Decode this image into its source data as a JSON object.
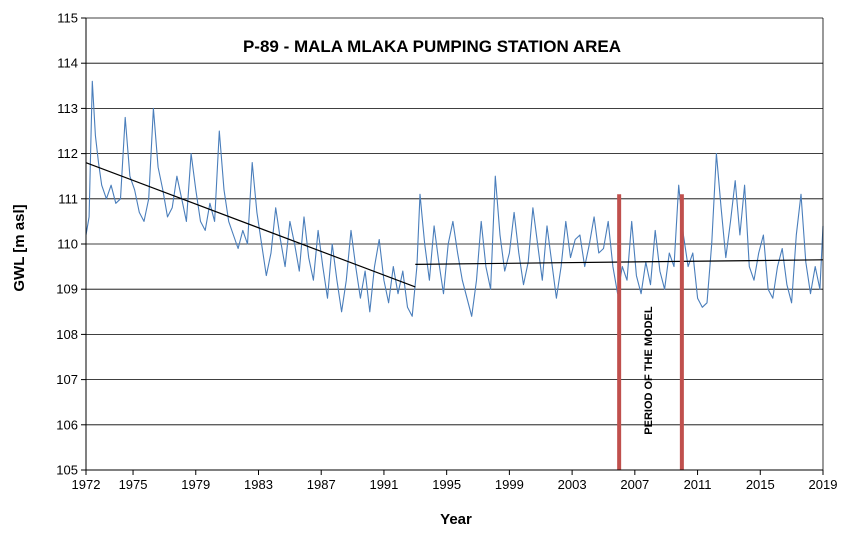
{
  "chart_data": {
    "type": "line",
    "title": "P-89 - MALA MLAKA PUMPING STATION AREA",
    "xlabel": "Year",
    "ylabel": "GWL [m asl]",
    "xlim": [
      1972,
      2019
    ],
    "ylim": [
      105,
      115
    ],
    "x_ticks": [
      1972,
      1975,
      1979,
      1983,
      1987,
      1991,
      1995,
      1999,
      2003,
      2007,
      2011,
      2015,
      2019
    ],
    "y_ticks": [
      105,
      106,
      107,
      108,
      109,
      110,
      111,
      112,
      113,
      114,
      115
    ],
    "grid": "horizontal",
    "series": [
      {
        "name": "GWL",
        "color": "#4a7ebb",
        "points": [
          [
            1972.0,
            110.2
          ],
          [
            1972.2,
            110.6
          ],
          [
            1972.4,
            113.6
          ],
          [
            1972.6,
            112.4
          ],
          [
            1972.8,
            111.8
          ],
          [
            1973.0,
            111.3
          ],
          [
            1973.3,
            111.0
          ],
          [
            1973.6,
            111.3
          ],
          [
            1973.9,
            110.9
          ],
          [
            1974.2,
            111.0
          ],
          [
            1974.5,
            112.8
          ],
          [
            1974.8,
            111.5
          ],
          [
            1975.1,
            111.2
          ],
          [
            1975.4,
            110.7
          ],
          [
            1975.7,
            110.5
          ],
          [
            1976.0,
            111.0
          ],
          [
            1976.3,
            113.0
          ],
          [
            1976.6,
            111.7
          ],
          [
            1976.9,
            111.2
          ],
          [
            1977.2,
            110.6
          ],
          [
            1977.5,
            110.8
          ],
          [
            1977.8,
            111.5
          ],
          [
            1978.1,
            111.0
          ],
          [
            1978.4,
            110.5
          ],
          [
            1978.7,
            112.0
          ],
          [
            1979.0,
            111.2
          ],
          [
            1979.3,
            110.5
          ],
          [
            1979.6,
            110.3
          ],
          [
            1979.9,
            110.9
          ],
          [
            1980.2,
            110.5
          ],
          [
            1980.5,
            112.5
          ],
          [
            1980.8,
            111.2
          ],
          [
            1981.1,
            110.5
          ],
          [
            1981.4,
            110.2
          ],
          [
            1981.7,
            109.9
          ],
          [
            1982.0,
            110.3
          ],
          [
            1982.3,
            110.0
          ],
          [
            1982.6,
            111.8
          ],
          [
            1982.9,
            110.7
          ],
          [
            1983.2,
            110.0
          ],
          [
            1983.5,
            109.3
          ],
          [
            1983.8,
            109.8
          ],
          [
            1984.1,
            110.8
          ],
          [
            1984.4,
            110.1
          ],
          [
            1984.7,
            109.5
          ],
          [
            1985.0,
            110.5
          ],
          [
            1985.3,
            110.0
          ],
          [
            1985.6,
            109.4
          ],
          [
            1985.9,
            110.6
          ],
          [
            1986.2,
            109.7
          ],
          [
            1986.5,
            109.2
          ],
          [
            1986.8,
            110.3
          ],
          [
            1987.1,
            109.5
          ],
          [
            1987.4,
            108.8
          ],
          [
            1987.7,
            110.0
          ],
          [
            1988.0,
            109.2
          ],
          [
            1988.3,
            108.5
          ],
          [
            1988.6,
            109.2
          ],
          [
            1988.9,
            110.3
          ],
          [
            1989.2,
            109.5
          ],
          [
            1989.5,
            108.8
          ],
          [
            1989.8,
            109.4
          ],
          [
            1990.1,
            108.5
          ],
          [
            1990.4,
            109.5
          ],
          [
            1990.7,
            110.1
          ],
          [
            1991.0,
            109.2
          ],
          [
            1991.3,
            108.7
          ],
          [
            1991.6,
            109.5
          ],
          [
            1991.9,
            108.9
          ],
          [
            1992.2,
            109.4
          ],
          [
            1992.5,
            108.6
          ],
          [
            1992.8,
            108.4
          ],
          [
            1993.1,
            109.5
          ],
          [
            1993.3,
            111.1
          ],
          [
            1993.6,
            110.0
          ],
          [
            1993.9,
            109.2
          ],
          [
            1994.2,
            110.4
          ],
          [
            1994.5,
            109.6
          ],
          [
            1994.8,
            108.9
          ],
          [
            1995.1,
            110.0
          ],
          [
            1995.4,
            110.5
          ],
          [
            1995.7,
            109.8
          ],
          [
            1996.0,
            109.2
          ],
          [
            1996.3,
            108.8
          ],
          [
            1996.6,
            108.4
          ],
          [
            1996.9,
            109.2
          ],
          [
            1997.2,
            110.5
          ],
          [
            1997.5,
            109.5
          ],
          [
            1997.8,
            109.0
          ],
          [
            1998.1,
            111.5
          ],
          [
            1998.4,
            110.2
          ],
          [
            1998.7,
            109.4
          ],
          [
            1999.0,
            109.8
          ],
          [
            1999.3,
            110.7
          ],
          [
            1999.6,
            109.8
          ],
          [
            1999.9,
            109.1
          ],
          [
            2000.2,
            109.6
          ],
          [
            2000.5,
            110.8
          ],
          [
            2000.8,
            110.0
          ],
          [
            2001.1,
            109.2
          ],
          [
            2001.4,
            110.4
          ],
          [
            2001.7,
            109.6
          ],
          [
            2002.0,
            108.8
          ],
          [
            2002.3,
            109.5
          ],
          [
            2002.6,
            110.5
          ],
          [
            2002.9,
            109.7
          ],
          [
            2003.2,
            110.1
          ],
          [
            2003.5,
            110.2
          ],
          [
            2003.8,
            109.5
          ],
          [
            2004.1,
            110.0
          ],
          [
            2004.4,
            110.6
          ],
          [
            2004.7,
            109.8
          ],
          [
            2005.0,
            109.9
          ],
          [
            2005.3,
            110.5
          ],
          [
            2005.6,
            109.5
          ],
          [
            2005.9,
            108.9
          ],
          [
            2006.2,
            109.5
          ],
          [
            2006.5,
            109.2
          ],
          [
            2006.8,
            110.5
          ],
          [
            2007.1,
            109.3
          ],
          [
            2007.4,
            108.9
          ],
          [
            2007.7,
            109.6
          ],
          [
            2008.0,
            109.1
          ],
          [
            2008.3,
            110.3
          ],
          [
            2008.6,
            109.4
          ],
          [
            2008.9,
            109.0
          ],
          [
            2009.2,
            109.8
          ],
          [
            2009.5,
            109.5
          ],
          [
            2009.8,
            111.3
          ],
          [
            2010.1,
            110.2
          ],
          [
            2010.4,
            109.5
          ],
          [
            2010.7,
            109.8
          ],
          [
            2011.0,
            108.8
          ],
          [
            2011.3,
            108.6
          ],
          [
            2011.6,
            108.7
          ],
          [
            2011.9,
            110.0
          ],
          [
            2012.2,
            112.0
          ],
          [
            2012.5,
            110.8
          ],
          [
            2012.8,
            109.7
          ],
          [
            2013.1,
            110.5
          ],
          [
            2013.4,
            111.4
          ],
          [
            2013.7,
            110.2
          ],
          [
            2014.0,
            111.3
          ],
          [
            2014.3,
            109.5
          ],
          [
            2014.6,
            109.2
          ],
          [
            2014.9,
            109.8
          ],
          [
            2015.2,
            110.2
          ],
          [
            2015.5,
            109.0
          ],
          [
            2015.8,
            108.8
          ],
          [
            2016.1,
            109.5
          ],
          [
            2016.4,
            109.9
          ],
          [
            2016.7,
            109.1
          ],
          [
            2017.0,
            108.7
          ],
          [
            2017.3,
            110.2
          ],
          [
            2017.6,
            111.1
          ],
          [
            2017.9,
            109.6
          ],
          [
            2018.2,
            108.9
          ],
          [
            2018.5,
            109.5
          ],
          [
            2018.8,
            109.0
          ],
          [
            2019.0,
            110.4
          ]
        ]
      }
    ],
    "trend_lines": [
      {
        "name": "trend 1972-1993",
        "color": "#000000",
        "start": [
          1972,
          111.8
        ],
        "end": [
          1993,
          109.05
        ]
      },
      {
        "name": "trend 1993-2019",
        "color": "#000000",
        "start": [
          1993,
          109.55
        ],
        "end": [
          2019,
          109.65
        ]
      }
    ],
    "period_markers": [
      {
        "x": 2006,
        "y_from": 105,
        "y_to": 111.1,
        "color": "#c0504d"
      },
      {
        "x": 2010,
        "y_from": 105,
        "y_to": 111.1,
        "color": "#c0504d"
      }
    ],
    "annotations": [
      {
        "text": "PERIOD OF THE MODEL",
        "x": 2008.1,
        "y": 107.2,
        "rotation": -90
      }
    ]
  }
}
